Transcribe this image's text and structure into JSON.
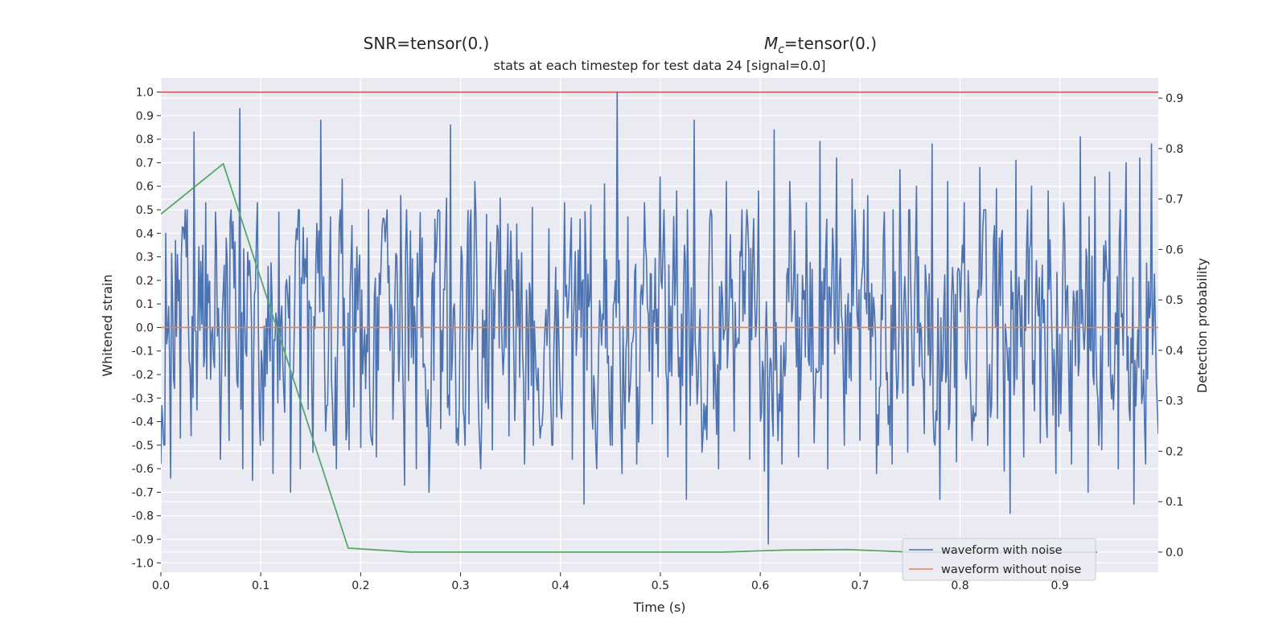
{
  "chart_data": {
    "type": "line",
    "title": "stats at each timestep for test data 24 [signal=0.0]",
    "annotations": [
      {
        "text": "SNR=tensor(0.)"
      },
      {
        "text": "=tensor(0.)",
        "symbol": "M",
        "subscript": "c"
      }
    ],
    "xlabel": "Time (s)",
    "ylabel": "Whitened strain",
    "y2label": "Detection probability",
    "xlim": [
      0.0,
      0.9985
    ],
    "ylim": [
      -1.04,
      1.06
    ],
    "y2lim": [
      -0.04,
      0.94
    ],
    "x_ticks": [
      "0.0",
      "0.1",
      "0.2",
      "0.3",
      "0.4",
      "0.5",
      "0.6",
      "0.7",
      "0.8",
      "0.9"
    ],
    "y_ticks": [
      "-1.0",
      "-0.9",
      "-0.8",
      "-0.7",
      "-0.6",
      "-0.5",
      "-0.4",
      "-0.3",
      "-0.2",
      "-0.1",
      "0.0",
      "0.1",
      "0.2",
      "0.3",
      "0.4",
      "0.5",
      "0.6",
      "0.7",
      "0.8",
      "0.9",
      "1.0"
    ],
    "y2_ticks": [
      "0.0",
      "0.1",
      "0.2",
      "0.3",
      "0.4",
      "0.5",
      "0.6",
      "0.7",
      "0.8",
      "0.9"
    ],
    "grid": true,
    "legend_position": "lower-right",
    "background": "#eaeaf2",
    "series": [
      {
        "name": "waveform with noise",
        "axis": "left",
        "color": "#4c72b0",
        "noise_samples": 1024,
        "x": [
          0.0,
          0.005,
          0.01,
          0.015,
          0.02,
          0.025,
          0.03,
          0.033,
          0.036,
          0.04,
          0.045,
          0.05,
          0.055,
          0.06,
          0.065,
          0.068,
          0.072,
          0.076,
          0.079,
          0.082,
          0.087,
          0.092,
          0.097,
          0.102,
          0.107,
          0.112,
          0.118,
          0.124,
          0.13,
          0.136,
          0.14,
          0.146,
          0.152,
          0.158,
          0.16,
          0.165,
          0.17,
          0.176,
          0.182,
          0.188,
          0.194,
          0.2,
          0.208,
          0.216,
          0.224,
          0.232,
          0.24,
          0.244,
          0.25,
          0.256,
          0.262,
          0.268,
          0.274,
          0.28,
          0.286,
          0.29,
          0.296,
          0.302,
          0.308,
          0.314,
          0.32,
          0.326,
          0.332,
          0.34,
          0.348,
          0.356,
          0.364,
          0.372,
          0.38,
          0.388,
          0.396,
          0.404,
          0.412,
          0.42,
          0.424,
          0.43,
          0.436,
          0.444,
          0.452,
          0.457,
          0.462,
          0.468,
          0.476,
          0.484,
          0.492,
          0.5,
          0.508,
          0.516,
          0.526,
          0.534,
          0.542,
          0.55,
          0.558,
          0.566,
          0.574,
          0.582,
          0.59,
          0.598,
          0.604,
          0.608,
          0.614,
          0.622,
          0.63,
          0.638,
          0.646,
          0.654,
          0.66,
          0.668,
          0.676,
          0.684,
          0.692,
          0.7,
          0.708,
          0.716,
          0.724,
          0.732,
          0.74,
          0.748,
          0.756,
          0.764,
          0.772,
          0.78,
          0.788,
          0.796,
          0.804,
          0.812,
          0.82,
          0.828,
          0.836,
          0.844,
          0.85,
          0.856,
          0.864,
          0.872,
          0.88,
          0.888,
          0.896,
          0.904,
          0.912,
          0.92,
          0.928,
          0.935,
          0.942,
          0.95,
          0.958,
          0.966,
          0.974,
          0.98,
          0.986,
          0.992,
          0.998
        ],
        "y": [
          -0.58,
          0.4,
          -0.64,
          0.37,
          -0.47,
          0.3,
          -0.46,
          0.83,
          -0.35,
          0.28,
          0.53,
          -0.22,
          0.49,
          -0.56,
          0.38,
          -0.48,
          0.45,
          -0.23,
          0.93,
          -0.6,
          0.32,
          -0.65,
          0.53,
          -0.48,
          0.26,
          -0.62,
          0.49,
          -0.36,
          -0.7,
          0.42,
          -0.6,
          0.38,
          -0.53,
          0.41,
          0.88,
          -0.44,
          0.47,
          -0.6,
          0.63,
          -0.52,
          0.25,
          -0.51,
          0.5,
          -0.55,
          0.46,
          -0.39,
          0.56,
          -0.67,
          0.41,
          -0.6,
          0.38,
          -0.7,
          0.46,
          -0.43,
          0.55,
          0.86,
          -0.49,
          0.3,
          -0.41,
          0.62,
          -0.6,
          0.48,
          -0.52,
          0.55,
          -0.46,
          0.44,
          -0.58,
          0.51,
          -0.47,
          0.42,
          -0.38,
          0.53,
          -0.56,
          0.46,
          -0.75,
          0.52,
          -0.6,
          0.61,
          -0.5,
          1.0,
          -0.62,
          0.47,
          -0.58,
          0.53,
          -0.41,
          0.64,
          -0.55,
          0.58,
          -0.73,
          0.88,
          -0.53,
          0.46,
          -0.6,
          0.62,
          -0.44,
          0.5,
          -0.56,
          0.58,
          -0.61,
          -0.92,
          0.84,
          -0.58,
          0.62,
          -0.55,
          0.53,
          -0.49,
          0.79,
          -0.6,
          0.72,
          -0.5,
          0.63,
          -0.48,
          0.56,
          -0.62,
          0.49,
          -0.58,
          0.67,
          -0.53,
          0.6,
          -0.45,
          0.78,
          -0.73,
          0.62,
          -0.57,
          0.53,
          -0.48,
          0.68,
          -0.5,
          0.59,
          -0.61,
          -0.79,
          0.71,
          -0.55,
          0.6,
          -0.49,
          0.58,
          -0.62,
          0.53,
          -0.58,
          0.81,
          -0.7,
          0.64,
          -0.52,
          0.66,
          -0.6,
          0.7,
          -0.75,
          0.72,
          -0.58,
          0.78,
          -0.34
        ]
      },
      {
        "name": "waveform without noise",
        "axis": "left",
        "color": "#dd8452",
        "x": [
          0.0,
          0.9985
        ],
        "y": [
          0.0,
          0.0
        ]
      },
      {
        "axis": "right",
        "color": "#55a868",
        "x": [
          0.0,
          0.0625,
          0.125,
          0.1875,
          0.25,
          0.3125,
          0.375,
          0.4375,
          0.5,
          0.5625,
          0.625,
          0.6875,
          0.75,
          0.8125,
          0.875,
          0.9375
        ],
        "y": [
          0.67,
          0.77,
          0.39,
          0.008,
          0.0,
          0.0,
          0.0,
          0.0,
          0.0,
          0.0,
          0.004,
          0.005,
          0.0,
          0.0,
          0.0,
          0.0
        ]
      }
    ],
    "reference_lines": [
      {
        "axis": "left",
        "y": 1.0,
        "color": "#c44e52"
      }
    ]
  }
}
